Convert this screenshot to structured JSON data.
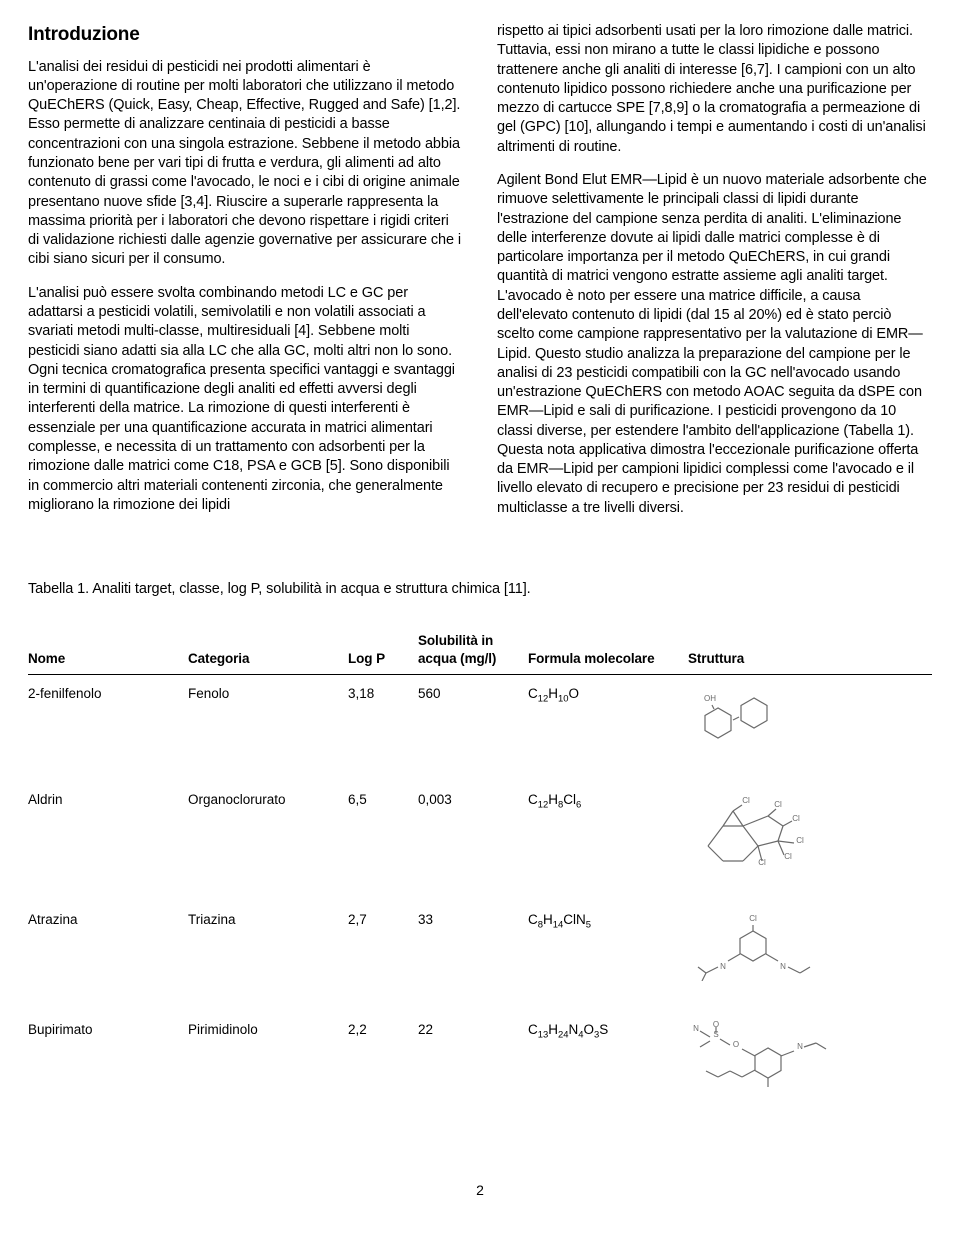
{
  "section": {
    "title": "Introduzione",
    "left_paras": [
      "L'analisi dei residui di pesticidi nei prodotti alimentari è un'operazione di routine per molti laboratori che utilizzano il metodo QuEChERS (Quick, Easy, Cheap, Effective, Rugged and Safe) [1,2]. Esso permette di analizzare centinaia di pesticidi a basse concentrazioni con una singola estrazione. Sebbene il metodo abbia funzionato bene per vari tipi di frutta e verdura, gli alimenti ad alto contenuto di grassi come l'avocado, le noci e i cibi di origine animale presentano nuove sfide [3,4]. Riuscire a superarle rappresenta la massima priorità per i laboratori che devono rispettare i rigidi criteri di validazione richiesti dalle agenzie governative per assicurare che i cibi siano sicuri per il consumo.",
      "L'analisi può essere svolta combinando metodi LC e GC per adattarsi a pesticidi volatili, semivolatili e non volatili associati a svariati metodi multi-classe, multiresiduali [4]. Sebbene molti pesticidi siano adatti sia alla LC che alla GC, molti altri non lo sono. Ogni tecnica cromatografica presenta specifici vantaggi e svantaggi in termini di quantificazione degli analiti ed effetti avversi degli interferenti della matrice. La rimozione di questi interferenti è essenziale per una quantificazione accurata in matrici alimentari complesse, e necessita di un trattamento con adsorbenti per la rimozione dalle matrici come C18, PSA e GCB [5]. Sono disponibili in commercio altri materiali contenenti zirconia, che generalmente migliorano la rimozione dei lipidi"
    ],
    "right_paras": [
      "rispetto ai tipici adsorbenti usati per la loro rimozione dalle matrici. Tuttavia, essi non mirano a tutte le classi lipidiche e possono trattenere anche gli analiti di interesse [6,7]. I campioni con un alto contenuto lipidico possono richiedere anche una purificazione per mezzo di cartucce SPE [7,8,9] o la cromatografia a permeazione di gel (GPC) [10], allungando i tempi e aumentando i costi di un'analisi altrimenti di routine.",
      "Agilent Bond Elut EMR—Lipid è un nuovo materiale adsorbente che rimuove selettivamente le principali classi di lipidi durante l'estrazione del campione senza perdita di analiti. L'eliminazione delle interferenze dovute ai lipidi dalle matrici complesse è di particolare importanza per il metodo QuEChERS, in cui grandi quantità di matrici vengono estratte assieme agli analiti target. L'avocado è noto per essere una matrice difficile, a causa dell'elevato contenuto di lipidi (dal 15 al 20%) ed è stato perciò scelto come campione rappresentativo per la valutazione di EMR—Lipid. Questo studio analizza la preparazione del campione per le analisi di 23 pesticidi compatibili con la GC nell'avocado usando un'estrazione QuEChERS con metodo AOAC seguita da dSPE con EMR—Lipid e sali di purificazione. I pesticidi provengono da 10 classi diverse, per estendere l'ambito dell'applicazione (Tabella 1). Questa nota applicativa dimostra l'eccezionale purificazione offerta da EMR—Lipid per campioni lipidici complessi come l'avocado e il livello elevato di recupero e precisione per 23 residui di pesticidi multiclasse a tre livelli diversi."
    ]
  },
  "table": {
    "caption": "Tabella 1. Analiti target, classe, log P, solubilità in acqua e struttura chimica [11].",
    "columns": {
      "name": "Nome",
      "category": "Categoria",
      "logp": "Log P",
      "solubility": "Solubilità in acqua (mg/l)",
      "formula": "Formula molecolare",
      "structure": "Struttura"
    },
    "rows": [
      {
        "name": "2-fenilfenolo",
        "category": "Fenolo",
        "logp": "3,18",
        "solubility": "560",
        "formula_html": "C<sub>12</sub>H<sub>10</sub>O",
        "structure_key": "phenylphenol"
      },
      {
        "name": "Aldrin",
        "category": "Organoclorurato",
        "logp": "6,5",
        "solubility": "0,003",
        "formula_html": "C<sub>12</sub>H<sub>8</sub>Cl<sub>6</sub>",
        "structure_key": "aldrin"
      },
      {
        "name": "Atrazina",
        "category": "Triazina",
        "logp": "2,7",
        "solubility": "33",
        "formula_html": "C<sub>8</sub>H<sub>14</sub>ClN<sub>5</sub>",
        "structure_key": "atrazine"
      },
      {
        "name": "Bupirimato",
        "category": "Pirimidinolo",
        "logp": "2,2",
        "solubility": "22",
        "formula_html": "C<sub>13</sub>H<sub>24</sub>N<sub>4</sub>O<sub>3</sub>S",
        "structure_key": "bupirimate"
      }
    ],
    "structure_style": {
      "stroke": "#6a6a6a",
      "stroke_width": 1.2,
      "label_color": "#6a6a6a",
      "label_font_size": 8
    }
  },
  "page_number": "2"
}
